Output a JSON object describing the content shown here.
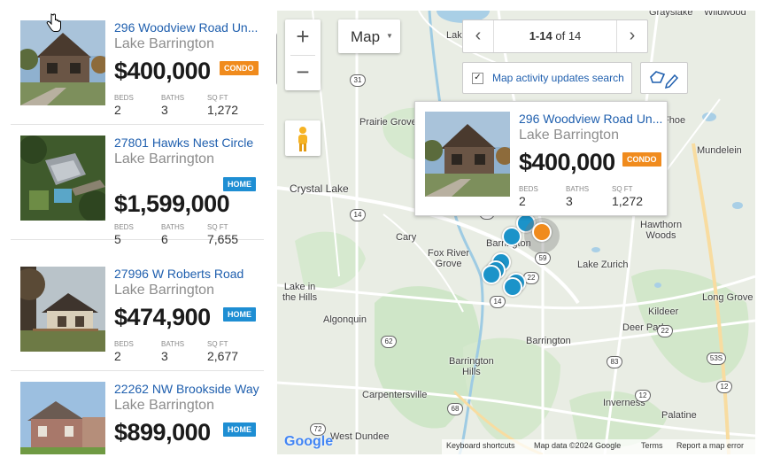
{
  "listings": [
    {
      "address": "296 Woodview Road Un...",
      "city": "Lake Barrington",
      "price": "$400,000",
      "badge": "CONDO",
      "beds_label": "BEDS",
      "beds": "2",
      "baths_label": "BATHS",
      "baths": "3",
      "sqft_label": "SQ FT",
      "sqft": "1,272"
    },
    {
      "address": "27801 Hawks Nest Circle",
      "city": "Lake Barrington",
      "price": "$1,599,000",
      "badge": "HOME",
      "beds_label": "BEDS",
      "beds": "5",
      "baths_label": "BATHS",
      "baths": "6",
      "sqft_label": "SQ FT",
      "sqft": "7,655"
    },
    {
      "address": "27996 W Roberts Road",
      "city": "Lake Barrington",
      "price": "$474,900",
      "badge": "HOME",
      "beds_label": "BEDS",
      "beds": "2",
      "baths_label": "BATHS",
      "baths": "3",
      "sqft_label": "SQ FT",
      "sqft": "2,677"
    },
    {
      "address": "22262 NW Brookside Way",
      "city": "Lake Barrington",
      "price": "$899,000",
      "badge": "HOME"
    }
  ],
  "map": {
    "type_label": "Map",
    "pagination": {
      "range": "1-14",
      "of_text": "of 14"
    },
    "activity_checkbox_label": "Map activity updates search",
    "zoom_in": "+",
    "zoom_out": "−",
    "popup": {
      "address": "296 Woodview Road Un...",
      "city": "Lake Barrington",
      "price": "$400,000",
      "badge": "CONDO",
      "beds_label": "BEDS",
      "beds": "2",
      "baths_label": "BATHS",
      "baths": "3",
      "sqft_label": "SQ FT",
      "sqft": "1,272"
    },
    "places": {
      "lake": "Lake",
      "prairie_grove": "Prairie Grove",
      "crystal_lake": "Crystal Lake",
      "cary": "Cary",
      "fox_river_grove": "Fox River\nGrove",
      "lake_in_the_hills": "Lake in\nthe Hills",
      "algonquin": "Algonquin",
      "barrington": "Barrington",
      "barrington_hills": "Barrington\nHills",
      "carpentersville": "Carpentersville",
      "west_dundee": "West Dundee",
      "lake_zurich": "Lake Zurich",
      "hawthorn_woods": "Hawthorn\nWoods",
      "mundelein": "Mundelein",
      "long_grove": "Long Grove",
      "kildeer": "Kildeer",
      "deer_park": "Deer Park",
      "inverness": "Inverness",
      "palatine": "Palatine",
      "hainesville": "Grayslake",
      "wildwood": "Wildwood",
      "barrington_small": "Barrington",
      "ehoe": "Fhoe"
    },
    "routes": [
      "31",
      "14",
      "12",
      "59",
      "22",
      "62",
      "68",
      "72",
      "83",
      "53S",
      "12",
      "14",
      "22",
      "12"
    ],
    "footer": {
      "logo": "Google",
      "shortcuts": "Keyboard shortcuts",
      "data": "Map data ©2024 Google",
      "terms": "Terms",
      "report": "Report a map error"
    }
  },
  "colors": {
    "link": "#1f5fae",
    "home_badge": "#1e8ed3",
    "condo_badge": "#f08b1d",
    "pin_blue": "#1b93c9",
    "pin_orange": "#f08b1d"
  }
}
